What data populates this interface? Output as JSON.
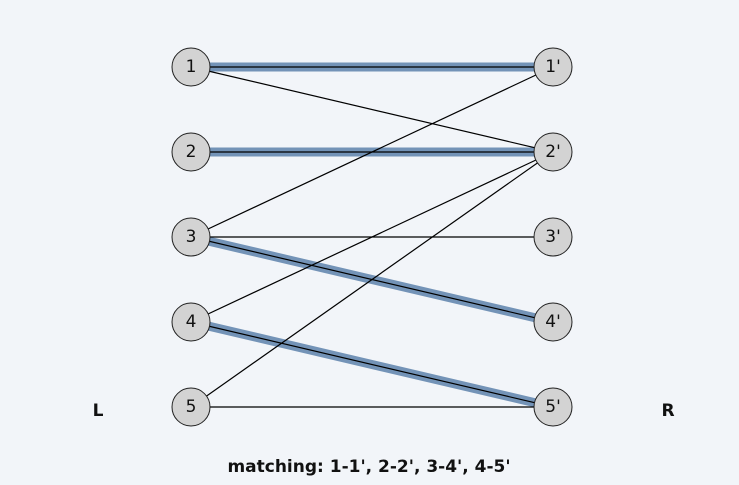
{
  "left_side_label": "L",
  "right_side_label": "R",
  "left_nodes": [
    {
      "id": "1",
      "label": "1"
    },
    {
      "id": "2",
      "label": "2"
    },
    {
      "id": "3",
      "label": "3"
    },
    {
      "id": "4",
      "label": "4"
    },
    {
      "id": "5",
      "label": "5"
    }
  ],
  "right_nodes": [
    {
      "id": "1'",
      "label": "1'"
    },
    {
      "id": "2'",
      "label": "2'"
    },
    {
      "id": "3'",
      "label": "3'"
    },
    {
      "id": "4'",
      "label": "4'"
    },
    {
      "id": "5'",
      "label": "5'"
    }
  ],
  "edges": [
    {
      "from": "1",
      "to": "1'",
      "matched": true
    },
    {
      "from": "1",
      "to": "2'",
      "matched": false
    },
    {
      "from": "2",
      "to": "2'",
      "matched": true
    },
    {
      "from": "3",
      "to": "1'",
      "matched": false
    },
    {
      "from": "3",
      "to": "3'",
      "matched": false
    },
    {
      "from": "3",
      "to": "4'",
      "matched": true
    },
    {
      "from": "4",
      "to": "2'",
      "matched": false
    },
    {
      "from": "4",
      "to": "5'",
      "matched": true
    },
    {
      "from": "5",
      "to": "2'",
      "matched": false
    },
    {
      "from": "5",
      "to": "5'",
      "matched": false
    }
  ],
  "colors": {
    "matched_edge": "#7393b7",
    "edge": "#000000",
    "node_fill": "#d3d3d3"
  },
  "caption": "matching:  1-1', 2-2', 3-4', 4-5'"
}
